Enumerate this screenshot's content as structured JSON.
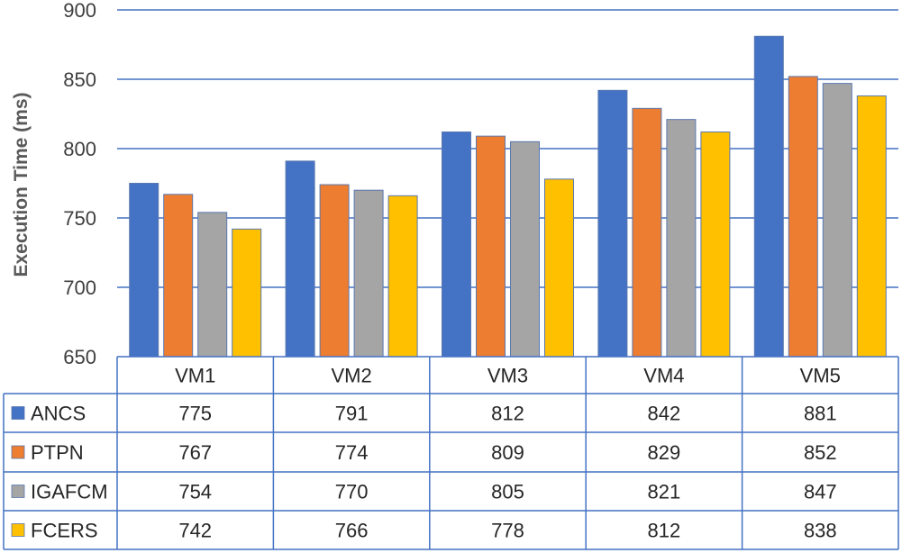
{
  "chart_data": {
    "type": "bar",
    "ylabel": "Execution Time (ms)",
    "ylim": [
      650,
      900
    ],
    "yticks": [
      650,
      700,
      750,
      800,
      850,
      900
    ],
    "grid": true,
    "legend": "data-table",
    "categories": [
      "VM1",
      "VM2",
      "VM3",
      "VM4",
      "VM5"
    ],
    "series": [
      {
        "name": "ANCS",
        "color": "#4472C4",
        "values": [
          775,
          791,
          812,
          842,
          881
        ]
      },
      {
        "name": "PTPN",
        "color": "#ED7D31",
        "values": [
          767,
          774,
          809,
          829,
          852
        ]
      },
      {
        "name": "IGAFCM",
        "color": "#A5A5A5",
        "values": [
          754,
          770,
          805,
          821,
          847
        ]
      },
      {
        "name": "FCERS",
        "color": "#FFC000",
        "values": [
          742,
          766,
          778,
          812,
          838
        ]
      }
    ]
  }
}
